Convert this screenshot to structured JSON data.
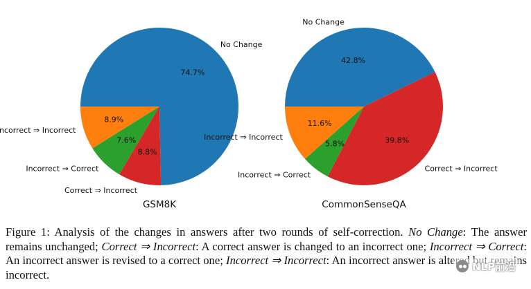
{
  "chart_data": [
    {
      "type": "pie",
      "title": "GSM8K",
      "start_angle_deg": 180,
      "direction": "clockwise",
      "slices": [
        {
          "label": "No Change",
          "value": 74.7,
          "pct_label": "74.7%",
          "color": "#1f77b4"
        },
        {
          "label": "Correct ⇒ Incorrect",
          "value": 8.8,
          "pct_label": "8.8%",
          "color": "#d62728"
        },
        {
          "label": "Incorrect ⇒ Correct",
          "value": 7.6,
          "pct_label": "7.6%",
          "color": "#2ca02c"
        },
        {
          "label": "Incorrect ⇒ Incorrect",
          "value": 8.9,
          "pct_label": "8.9%",
          "color": "#ff7f0e"
        }
      ]
    },
    {
      "type": "pie",
      "title": "CommonSenseQA",
      "start_angle_deg": 180,
      "direction": "clockwise",
      "slices": [
        {
          "label": "No Change",
          "value": 42.8,
          "pct_label": "42.8%",
          "color": "#1f77b4"
        },
        {
          "label": "Correct ⇒ Incorrect",
          "value": 39.8,
          "pct_label": "39.8%",
          "color": "#d62728"
        },
        {
          "label": "Incorrect ⇒ Correct",
          "value": 5.8,
          "pct_label": "5.8%",
          "color": "#2ca02c"
        },
        {
          "label": "Incorrect ⇒ Incorrect",
          "value": 11.6,
          "pct_label": "11.6%",
          "color": "#ff7f0e"
        }
      ]
    }
  ],
  "caption": {
    "figure_label": "Figure 1:",
    "intro": " Analysis of the changes in answers after two rounds of self-correction. ",
    "term1": "No Change",
    "def1": ": The answer remains unchanged; ",
    "term2": "Correct ⇒ Incorrect",
    "def2": ": A correct answer is changed to an incorrect one; ",
    "term3": "Incorrect ⇒ Correct",
    "def3": ": An incorrect answer is revised to a correct one; ",
    "term4": "Incorrect ⇒ Incorrect",
    "def4": ": An incorrect answer is altered but remains incorrect."
  },
  "watermark": {
    "icon": "wechat-icon",
    "text": "NLP前沿"
  }
}
